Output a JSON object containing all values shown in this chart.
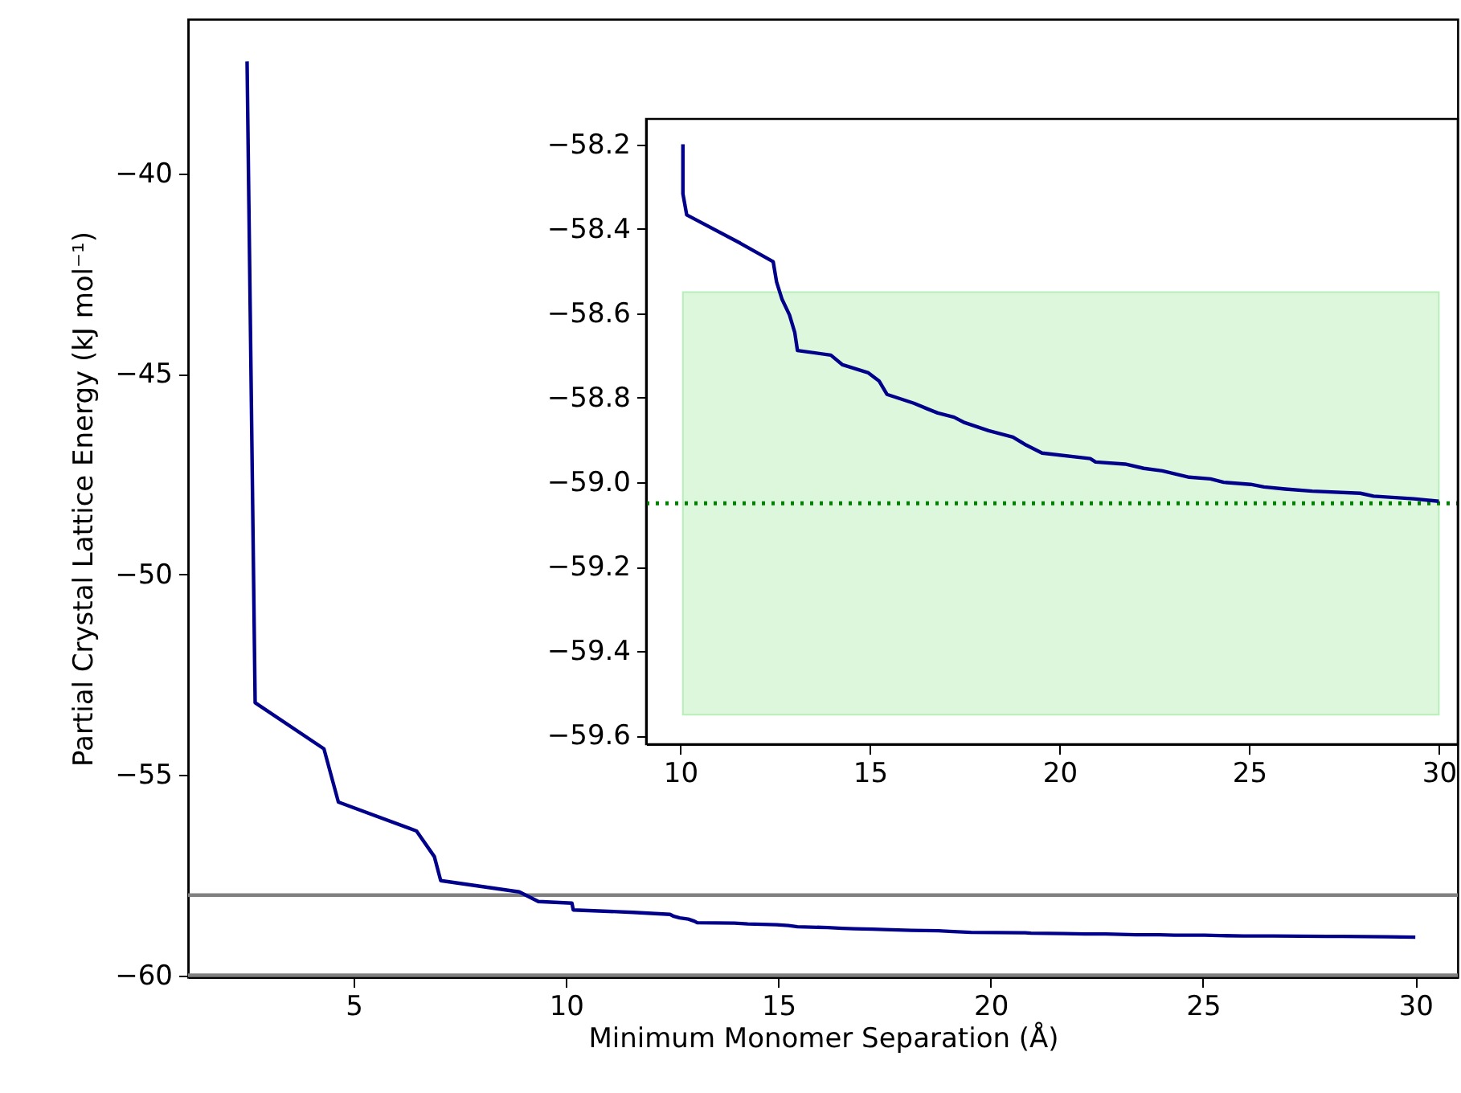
{
  "chart_data": [
    {
      "type": "line",
      "xlabel": "Minimum Monomer Separation (Å)",
      "ylabel": "Partial Crystal Lattice Energy (kJ mol⁻¹)",
      "x": [
        2.49,
        2.68,
        4.3,
        4.64,
        6.48,
        6.9,
        7.05,
        8.9,
        9.35,
        10.14,
        10.17,
        11.58,
        12.45,
        12.54,
        12.68,
        12.88,
        13.02,
        13.09,
        13.97,
        14.28,
        14.96,
        15.24,
        15.45,
        16.16,
        16.51,
        16.79,
        17.22,
        17.5,
        18.13,
        18.77,
        19.12,
        19.54,
        20.81,
        20.95,
        21.73,
        22.22,
        22.71,
        23.42,
        23.98,
        24.33,
        25.04,
        25.39,
        25.95,
        26.66,
        27.93,
        28.28,
        29.34,
        30.0
      ],
      "series": [
        {
          "color": "#00008b",
          "values": [
            -37.2,
            -53.2,
            -54.35,
            -55.68,
            -56.4,
            -57.04,
            -57.64,
            -57.92,
            -58.16,
            -58.2,
            -58.37,
            -58.43,
            -58.48,
            -58.53,
            -58.57,
            -58.6,
            -58.65,
            -58.69,
            -58.7,
            -58.72,
            -58.74,
            -58.76,
            -58.79,
            -58.81,
            -58.83,
            -58.84,
            -58.85,
            -58.86,
            -58.88,
            -58.89,
            -58.91,
            -58.93,
            -58.94,
            -58.95,
            -58.96,
            -58.97,
            -58.97,
            -58.99,
            -58.99,
            -59.0,
            -59.0,
            -59.01,
            -59.02,
            -59.02,
            -59.03,
            -59.03,
            -59.04,
            -59.05
          ]
        }
      ],
      "xlim": [
        1.1,
        31.0
      ],
      "ylim": [
        -60.05,
        -36.15
      ],
      "xticks": [
        5,
        10,
        15,
        20,
        25,
        30
      ],
      "yticks": [
        -60,
        -55,
        -50,
        -45,
        -40
      ],
      "ref_lines": [
        {
          "axis": "y",
          "value": -58,
          "color": "#808080"
        },
        {
          "axis": "y",
          "value": -60,
          "color": "#808080"
        }
      ]
    },
    {
      "type": "line",
      "x": [
        10.07,
        10.07,
        10.17,
        11.58,
        12.45,
        12.54,
        12.68,
        12.88,
        13.02,
        13.09,
        13.97,
        14.28,
        14.96,
        15.24,
        15.45,
        16.16,
        16.51,
        16.79,
        17.22,
        17.5,
        18.13,
        18.77,
        19.12,
        19.54,
        20.81,
        20.95,
        21.73,
        22.22,
        22.71,
        23.42,
        23.98,
        24.33,
        25.04,
        25.39,
        25.95,
        26.66,
        27.93,
        28.28,
        29.34,
        30.0
      ],
      "series": [
        {
          "color": "#00008b",
          "values": [
            -58.2,
            -58.317,
            -58.367,
            -58.434,
            -58.478,
            -58.526,
            -58.566,
            -58.604,
            -58.646,
            -58.688,
            -58.699,
            -58.722,
            -58.741,
            -58.76,
            -58.792,
            -58.813,
            -58.826,
            -58.836,
            -58.846,
            -58.859,
            -58.878,
            -58.893,
            -58.912,
            -58.931,
            -58.944,
            -58.952,
            -58.957,
            -58.967,
            -58.973,
            -58.988,
            -58.992,
            -59.0,
            -59.005,
            -59.011,
            -59.016,
            -59.021,
            -59.026,
            -59.033,
            -59.039,
            -59.045
          ]
        }
      ],
      "xlim": [
        9.1,
        30.5
      ],
      "ylim": [
        -59.62,
        -58.14
      ],
      "xticks": [
        10,
        15,
        20,
        25,
        30
      ],
      "yticks": [
        -59.6,
        -59.4,
        -59.2,
        {
          "value": -59,
          "label": "−59.0"
        },
        -58.8,
        -58.6,
        -58.4,
        -58.2
      ],
      "ref_lines": [
        {
          "axis": "y",
          "value": -59.05,
          "color": "#008000",
          "line_style": "dotted"
        }
      ],
      "bands": [
        {
          "axis": "y",
          "from": -59.55,
          "to": -58.55,
          "color": "#dcf7dc"
        }
      ]
    }
  ]
}
